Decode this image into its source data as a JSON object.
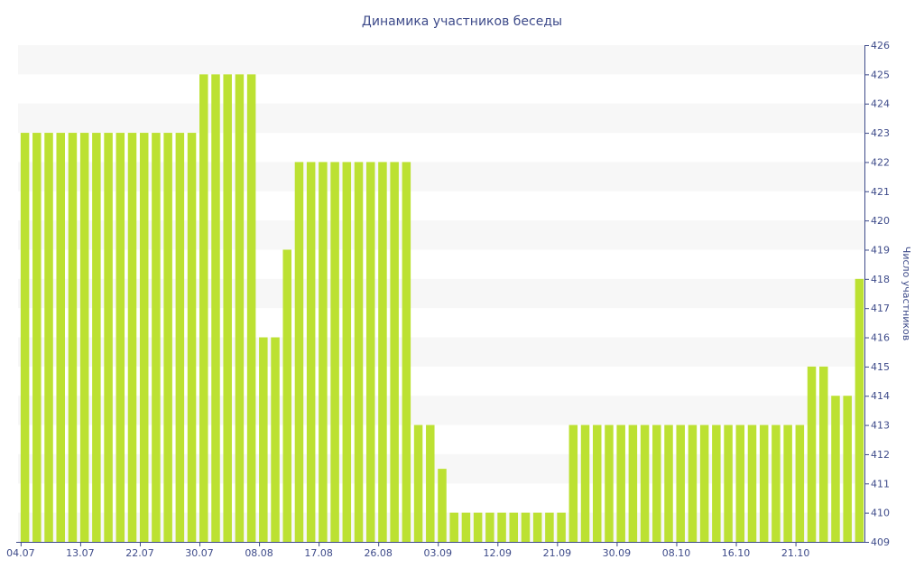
{
  "chart_data": {
    "type": "bar",
    "title": "Динамика участников беседы",
    "xlabel": "",
    "ylabel": "Число участников",
    "ylim": [
      409,
      426
    ],
    "y_ticks": [
      409,
      410,
      411,
      412,
      413,
      414,
      415,
      416,
      417,
      418,
      419,
      420,
      421,
      422,
      423,
      424,
      425,
      426
    ],
    "y_axis_side": "right",
    "x_tick_labels": [
      {
        "index": 0,
        "label": "04.07"
      },
      {
        "index": 5,
        "label": "13.07"
      },
      {
        "index": 10,
        "label": "22.07"
      },
      {
        "index": 15,
        "label": "30.07"
      },
      {
        "index": 20,
        "label": "08.08"
      },
      {
        "index": 25,
        "label": "17.08"
      },
      {
        "index": 30,
        "label": "26.08"
      },
      {
        "index": 35,
        "label": "03.09"
      },
      {
        "index": 40,
        "label": "12.09"
      },
      {
        "index": 45,
        "label": "21.09"
      },
      {
        "index": 50,
        "label": "30.09"
      },
      {
        "index": 55,
        "label": "08.10"
      },
      {
        "index": 60,
        "label": "16.10"
      },
      {
        "index": 65,
        "label": "21.10"
      }
    ],
    "values": [
      423,
      423,
      423,
      423,
      423,
      423,
      423,
      423,
      423,
      423,
      423,
      423,
      423,
      423,
      423,
      425,
      425,
      425,
      425,
      425,
      416,
      416,
      419,
      422,
      422,
      422,
      422,
      422,
      422,
      422,
      422,
      422,
      422,
      413,
      413,
      411.5,
      410,
      410,
      410,
      410,
      410,
      410,
      410,
      410,
      410,
      410,
      413,
      413,
      413,
      413,
      413,
      413,
      413,
      413,
      413,
      413,
      413,
      413,
      413,
      413,
      413,
      413,
      413,
      413,
      413,
      413,
      415,
      415,
      414,
      414,
      418
    ],
    "grid": "alternating horizontal bands",
    "legend": "none",
    "colors": {
      "bar": "#bce132",
      "band": "#f7f7f7",
      "axis": "#3e4b8a",
      "text": "#3e4b8a"
    }
  }
}
